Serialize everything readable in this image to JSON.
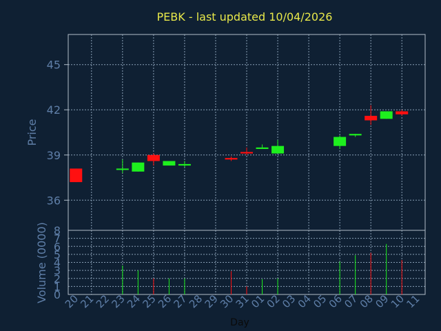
{
  "chart_data": {
    "type": "candlestick",
    "title": "PEBK - last updated 10/04/2026",
    "xlabel": "Day",
    "price_panel": {
      "ylabel": "Price",
      "ylim": [
        34,
        47
      ],
      "yticks": [
        "36",
        "39",
        "42",
        "45"
      ],
      "ytick_values": [
        36,
        39,
        42,
        45
      ],
      "grid": true
    },
    "volume_panel": {
      "ylabel": "Volume (0000)",
      "ylim": [
        0,
        8
      ],
      "yticks": [
        "0",
        "1",
        "2",
        "3",
        "4",
        "5",
        "6",
        "7",
        "8"
      ],
      "grid": true
    },
    "categories": [
      "20",
      "21",
      "22",
      "23",
      "24",
      "25",
      "26",
      "27",
      "28",
      "29",
      "30",
      "31",
      "01",
      "02",
      "03",
      "04",
      "05",
      "06",
      "07",
      "08",
      "09",
      "10",
      "11"
    ],
    "candles": [
      {
        "day": "20",
        "open": 38.1,
        "high": 38.1,
        "low": 37.2,
        "close": 37.2,
        "volume": null
      },
      {
        "day": "23",
        "open": 38.1,
        "high": 38.7,
        "low": 37.8,
        "close": 38.1,
        "volume": 3.6
      },
      {
        "day": "24",
        "open": 37.9,
        "high": 38.5,
        "low": 37.9,
        "close": 38.5,
        "volume": 3.0
      },
      {
        "day": "25",
        "open": 39.0,
        "high": 39.1,
        "low": 38.3,
        "close": 38.6,
        "volume": 2.0
      },
      {
        "day": "26",
        "open": 38.3,
        "high": 38.6,
        "low": 38.3,
        "close": 38.6,
        "volume": 2.0
      },
      {
        "day": "27",
        "open": 38.3,
        "high": 38.6,
        "low": 38.2,
        "close": 38.4,
        "volume": 2.0
      },
      {
        "day": "30",
        "open": 38.8,
        "high": 38.9,
        "low": 38.6,
        "close": 38.7,
        "volume": 2.9
      },
      {
        "day": "31",
        "open": 39.2,
        "high": 39.5,
        "low": 39.0,
        "close": 39.1,
        "volume": 1.0
      },
      {
        "day": "01",
        "open": 39.4,
        "high": 39.7,
        "low": 39.4,
        "close": 39.5,
        "volume": 1.9
      },
      {
        "day": "02",
        "open": 39.1,
        "high": 40.0,
        "low": 39.1,
        "close": 39.6,
        "volume": 2.0
      },
      {
        "day": "06",
        "open": 39.6,
        "high": 40.3,
        "low": 39.4,
        "close": 40.2,
        "volume": 4.1
      },
      {
        "day": "07",
        "open": 40.3,
        "high": 40.4,
        "low": 40.2,
        "close": 40.4,
        "volume": 4.9
      },
      {
        "day": "08",
        "open": 41.6,
        "high": 42.3,
        "low": 41.0,
        "close": 41.3,
        "volume": 5.2
      },
      {
        "day": "09",
        "open": 41.4,
        "high": 41.9,
        "low": 41.4,
        "close": 41.9,
        "volume": 6.3
      },
      {
        "day": "10",
        "open": 41.9,
        "high": 42.0,
        "low": 41.6,
        "close": 41.7,
        "volume": 4.3
      }
    ],
    "colors": {
      "background": "#0f2033",
      "frame": "#b3bec9",
      "grid": "#8aa0b6",
      "axis_text": "#5f7fa8",
      "title": "#e8e84a",
      "up": "#1ef01e",
      "down": "#ff1010"
    }
  }
}
